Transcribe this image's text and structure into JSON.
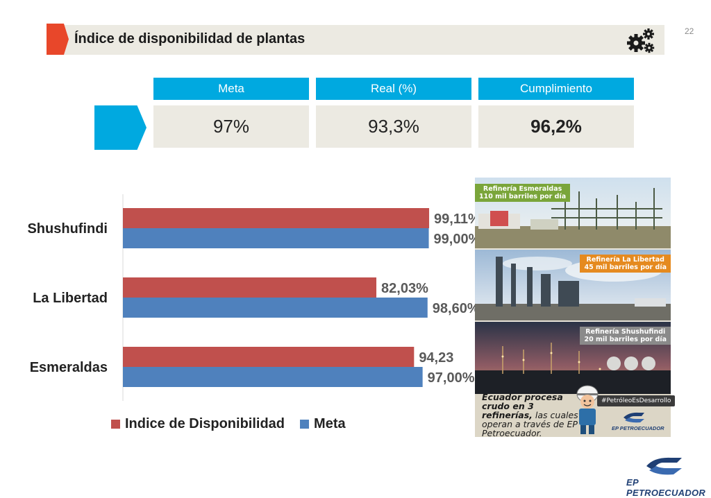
{
  "slide": {
    "title": "Índice de disponibilidad de plantas",
    "page_number": "22"
  },
  "kpis": [
    {
      "label": "Meta",
      "value": "97%",
      "bold": false
    },
    {
      "label": "Real (%)",
      "value": "93,3%",
      "bold": false
    },
    {
      "label": "Cumplimiento",
      "value": "96,2%",
      "bold": true
    }
  ],
  "chart_data": {
    "type": "bar",
    "orientation": "horizontal",
    "categories": [
      "Shushufindi",
      "La Libertad",
      "Esmeraldas"
    ],
    "series": [
      {
        "name": "Indice de Disponibilidad",
        "color": "#c0504d",
        "values": [
          99.11,
          82.03,
          94.23
        ],
        "labels": [
          "99,11%",
          "82,03%",
          "94,23"
        ]
      },
      {
        "name": "Meta",
        "color": "#4f81bd",
        "values": [
          99.0,
          98.6,
          97.0
        ],
        "labels": [
          "99,00%",
          "98,60%",
          "97,00%"
        ]
      }
    ],
    "xlim": [
      0,
      100
    ],
    "grid": false,
    "legend_position": "bottom"
  },
  "infographic": {
    "panels": [
      {
        "name": "Refinería Esmeraldas",
        "capacity": "110 mil barriles por día",
        "tag_color": "#7aa53a"
      },
      {
        "name": "Refinería La Libertad",
        "capacity": "45 mil barriles por día",
        "tag_color": "#e58a1f"
      },
      {
        "name": "Refinería Shushufindi",
        "capacity": "20 mil barriles por día",
        "tag_color": "#8a8a8a"
      }
    ],
    "caption_bold": "Ecuador procesa crudo en 3 refinerías,",
    "caption_rest": " las cuales operan a través de EP Petroecuador.",
    "hashtag": "#PetróleoEsDesarrollo",
    "small_logo": "EP PETROECUADOR"
  },
  "footer": {
    "logo_text": "EP PETROECUADOR"
  },
  "icons": [
    "gears-icon",
    "petroecuador-logo-icon"
  ]
}
